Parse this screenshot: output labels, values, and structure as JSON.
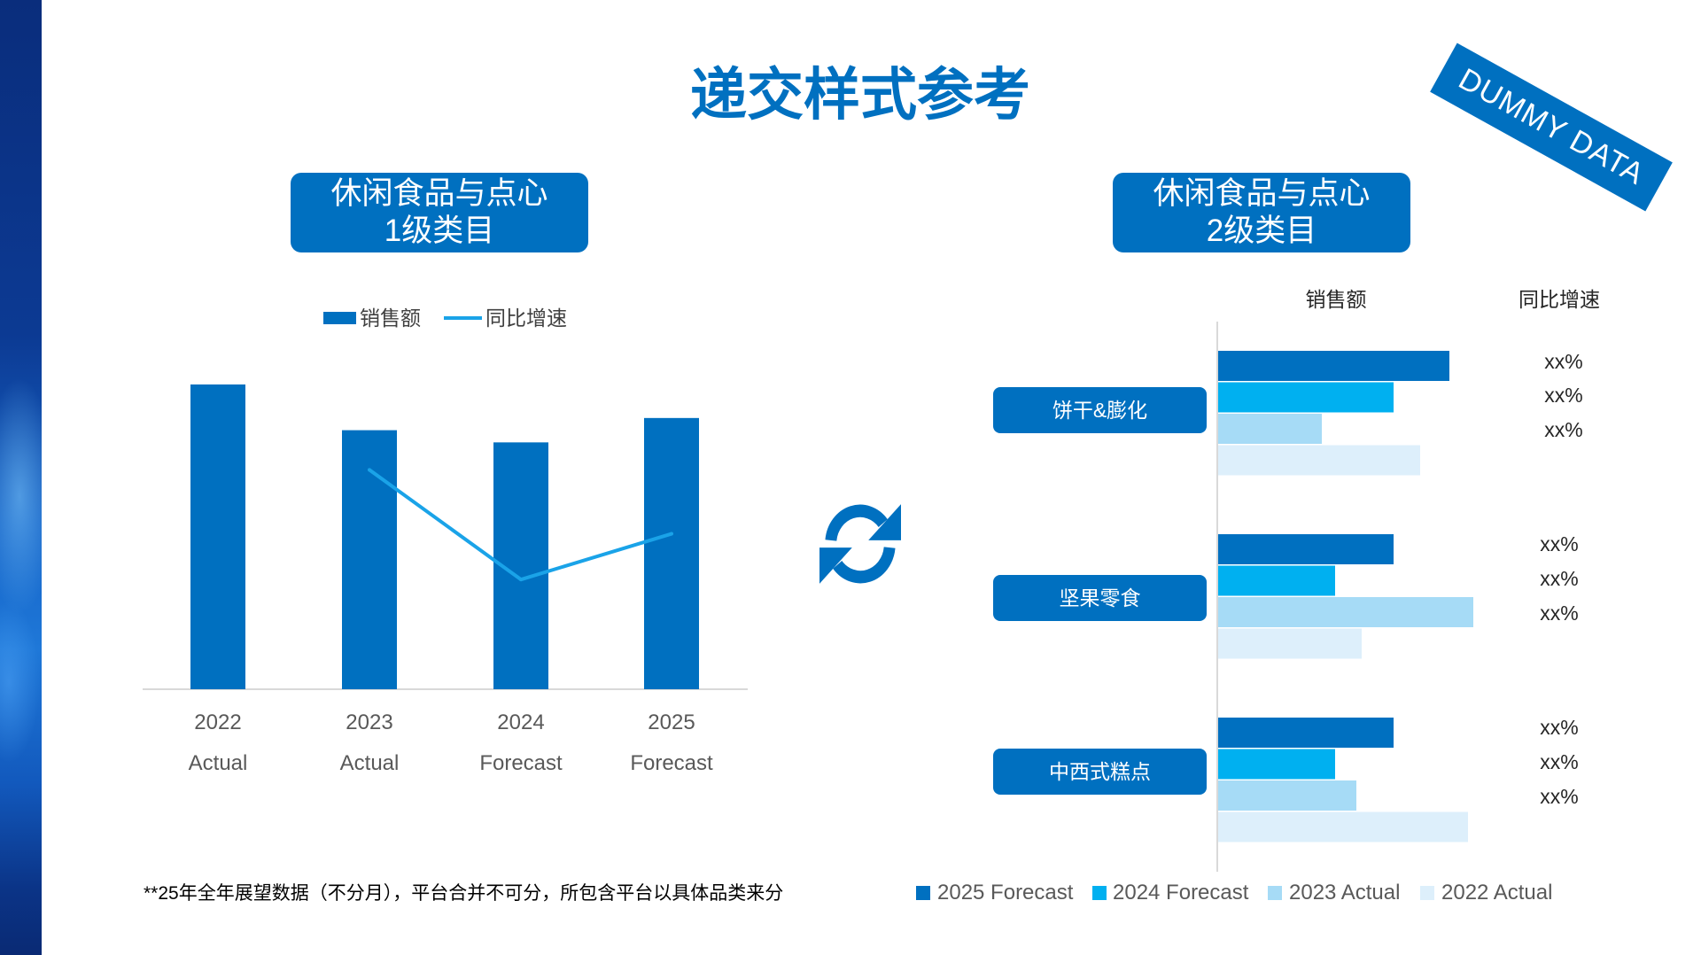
{
  "title": "递交样式参考",
  "stamp": "DUMMY DATA",
  "icons": {
    "center": "sync-icon"
  },
  "colors": {
    "accent": "#0070C0",
    "axis_text": "#595959"
  },
  "left_panel": {
    "header": [
      "休闲食品与点心",
      "1级类目"
    ]
  },
  "right_panel": {
    "header": [
      "休闲食品与点心",
      "2级类目"
    ],
    "column_headers": [
      "销售额",
      "同比增速"
    ]
  },
  "footnote": "**25年全年展望数据（不分月），平台合并不可分，所包含平台以具体品类来分",
  "chart_data": [
    {
      "type": "bar",
      "categories": [
        "2022",
        "2023",
        "2024",
        "2025"
      ],
      "category_sublabels": [
        "Actual",
        "Actual",
        "Forecast",
        "Forecast"
      ],
      "series": [
        {
          "name": "销售额",
          "kind": "bar",
          "axis": "primary",
          "values": [
            100,
            85,
            81,
            89
          ],
          "color": "#0070C0"
        },
        {
          "name": "同比增速",
          "kind": "line",
          "axis": "secondary",
          "values": [
            null,
            72,
            36,
            51
          ],
          "color": "#1AA3E8"
        }
      ],
      "ylim": [
        0,
        100
      ],
      "y2lim": [
        0,
        100
      ],
      "y_axis_visible": false,
      "grid": false,
      "legend": "top"
    },
    {
      "type": "bar",
      "orientation": "horizontal",
      "categories": [
        "饼干&膨化",
        "坚果零食",
        "中西式糕点"
      ],
      "series": [
        {
          "name": "2025 Forecast",
          "values": [
            87,
            66,
            66
          ],
          "color": "#0070C0"
        },
        {
          "name": "2024 Forecast",
          "values": [
            66,
            44,
            44
          ],
          "color": "#00B0F0"
        },
        {
          "name": "2023 Actual",
          "values": [
            39,
            96,
            52
          ],
          "color": "#A6DBF6"
        },
        {
          "name": "2022 Actual",
          "values": [
            76,
            54,
            94
          ],
          "color": "#DDEFFB"
        }
      ],
      "yoy_labels": [
        [
          "xx%",
          "xx%",
          "xx%"
        ],
        [
          "xx%",
          "xx%",
          "xx%"
        ],
        [
          "xx%",
          "xx%",
          "xx%"
        ]
      ],
      "xlim": [
        0,
        100
      ],
      "x_axis_visible": false,
      "grid": false,
      "legend": "bottom"
    }
  ]
}
